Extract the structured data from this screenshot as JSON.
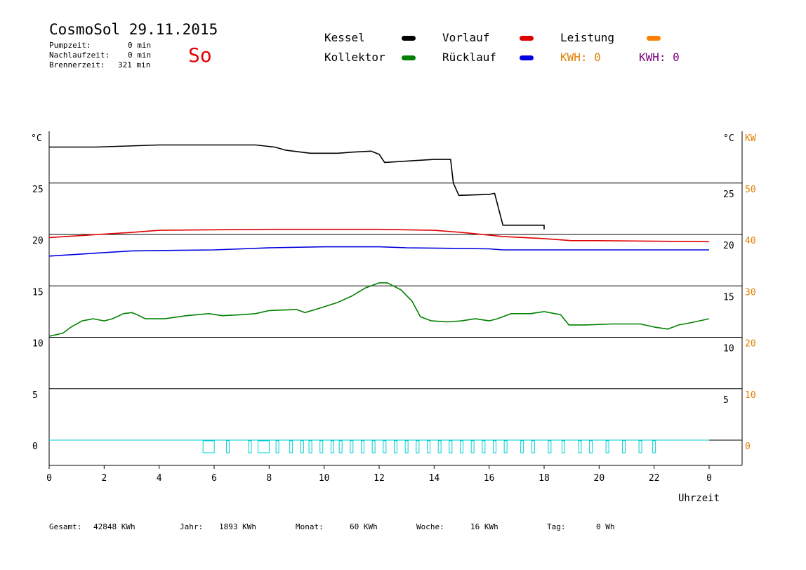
{
  "header": {
    "title": "CosmoSol 29.11.2015",
    "day": "So",
    "stats": [
      {
        "label": "Pumpzeit:",
        "value": "0 min"
      },
      {
        "label": "Nachlaufzeit:",
        "value": "0 min"
      },
      {
        "label": "Brennerzeit:",
        "value": "321 min"
      }
    ]
  },
  "legend": {
    "kessel": {
      "label": "Kessel",
      "color": "#000000"
    },
    "vorlauf": {
      "label": "Vorlauf",
      "color": "#e00000"
    },
    "leistung": {
      "label": "Leistung",
      "color": "#ff8000"
    },
    "kollektor": {
      "label": "Kollektor",
      "color": "#008000"
    },
    "ruecklauf": {
      "label": "Rücklauf",
      "color": "#0000e0"
    },
    "kwh1": "KWH: 0",
    "kwh2": "KWH: 0",
    "kwh1_color": "#e08000",
    "kwh2_color": "#800080"
  },
  "footer": {
    "gesamt_label": "Gesamt:",
    "gesamt_value": "42848 KWh",
    "jahr_label": "Jahr:",
    "jahr_value": "1893 KWh",
    "monat_label": "Monat:",
    "monat_value": "60 KWh",
    "woche_label": "Woche:",
    "woche_value": "16 KWh",
    "tag_label": "Tag:",
    "tag_value": "0 Wh"
  },
  "chart_data": {
    "type": "line",
    "xlabel": "Uhrzeit",
    "x_ticks": [
      "0",
      "2",
      "4",
      "6",
      "8",
      "10",
      "12",
      "14",
      "16",
      "18",
      "20",
      "22",
      "0"
    ],
    "xlim": [
      0,
      24
    ],
    "y_left": {
      "unit": "°C",
      "ticks": [
        0,
        5,
        10,
        15,
        20,
        25
      ],
      "ylim": [
        0,
        30
      ]
    },
    "y_right": {
      "unit": "°C",
      "ticks": [
        5,
        10,
        15,
        20,
        25
      ]
    },
    "y_right_kw": {
      "unit": "KW",
      "ticks": [
        0,
        10,
        20,
        30,
        40,
        50
      ],
      "ylim": [
        0,
        60
      ]
    },
    "grid": true,
    "series": [
      {
        "name": "Kessel",
        "color": "#000000",
        "points": [
          [
            0,
            28.5
          ],
          [
            1.7,
            28.5
          ],
          [
            4,
            28.7
          ],
          [
            7.5,
            28.7
          ],
          [
            8.2,
            28.5
          ],
          [
            8.6,
            28.2
          ],
          [
            9.5,
            27.9
          ],
          [
            10.5,
            27.9
          ],
          [
            11,
            28.0
          ],
          [
            11.7,
            28.1
          ],
          [
            12,
            27.8
          ],
          [
            12.2,
            27.0
          ],
          [
            14,
            27.3
          ],
          [
            14.6,
            27.3
          ],
          [
            14.7,
            25.0
          ],
          [
            14.9,
            23.8
          ],
          [
            16,
            23.9
          ],
          [
            16.2,
            24.0
          ],
          [
            16.5,
            20.9
          ],
          [
            18,
            20.9
          ],
          [
            18,
            20.5
          ]
        ]
      },
      {
        "name": "Vorlauf",
        "color": "#e00000",
        "points": [
          [
            0,
            19.7
          ],
          [
            3,
            20.2
          ],
          [
            4,
            20.4
          ],
          [
            8,
            20.5
          ],
          [
            12,
            20.5
          ],
          [
            14,
            20.4
          ],
          [
            15,
            20.2
          ],
          [
            16.5,
            19.8
          ],
          [
            18,
            19.6
          ],
          [
            19,
            19.4
          ],
          [
            20,
            19.4
          ],
          [
            24,
            19.3
          ]
        ]
      },
      {
        "name": "Rücklauf",
        "color": "#0000e0",
        "points": [
          [
            0,
            17.9
          ],
          [
            3,
            18.4
          ],
          [
            6,
            18.5
          ],
          [
            8,
            18.7
          ],
          [
            10,
            18.8
          ],
          [
            12,
            18.8
          ],
          [
            13,
            18.7
          ],
          [
            16,
            18.6
          ],
          [
            16.5,
            18.5
          ],
          [
            20,
            18.5
          ],
          [
            24,
            18.5
          ]
        ]
      },
      {
        "name": "Kollektor",
        "color": "#008000",
        "points": [
          [
            0,
            10.1
          ],
          [
            0.5,
            10.4
          ],
          [
            0.8,
            11.0
          ],
          [
            1.2,
            11.6
          ],
          [
            1.6,
            11.8
          ],
          [
            2.0,
            11.6
          ],
          [
            2.3,
            11.8
          ],
          [
            2.7,
            12.3
          ],
          [
            3.0,
            12.4
          ],
          [
            3.2,
            12.2
          ],
          [
            3.5,
            11.8
          ],
          [
            4.2,
            11.8
          ],
          [
            5.0,
            12.1
          ],
          [
            5.8,
            12.3
          ],
          [
            6.3,
            12.1
          ],
          [
            7.0,
            12.2
          ],
          [
            7.5,
            12.3
          ],
          [
            8.0,
            12.6
          ],
          [
            9.0,
            12.7
          ],
          [
            9.3,
            12.4
          ],
          [
            9.8,
            12.8
          ],
          [
            10.5,
            13.4
          ],
          [
            11.0,
            14.0
          ],
          [
            11.5,
            14.8
          ],
          [
            12.0,
            15.3
          ],
          [
            12.3,
            15.3
          ],
          [
            12.8,
            14.6
          ],
          [
            13.2,
            13.5
          ],
          [
            13.5,
            12.0
          ],
          [
            13.9,
            11.6
          ],
          [
            14.5,
            11.5
          ],
          [
            15.0,
            11.6
          ],
          [
            15.5,
            11.8
          ],
          [
            16.0,
            11.6
          ],
          [
            16.3,
            11.8
          ],
          [
            16.8,
            12.3
          ],
          [
            17.5,
            12.3
          ],
          [
            18.0,
            12.5
          ],
          [
            18.6,
            12.2
          ],
          [
            18.9,
            11.2
          ],
          [
            19.5,
            11.2
          ],
          [
            20.5,
            11.3
          ],
          [
            21.5,
            11.3
          ],
          [
            22.0,
            11.0
          ],
          [
            22.5,
            10.8
          ],
          [
            22.9,
            11.2
          ],
          [
            23.3,
            11.4
          ],
          [
            24.0,
            11.8
          ]
        ]
      }
    ],
    "leistung_marks": [
      5.8,
      6.5,
      7.3,
      7.8,
      8.3,
      8.8,
      9.2,
      9.5,
      9.9,
      10.3,
      10.6,
      11.0,
      11.4,
      11.8,
      12.2,
      12.6,
      13.0,
      13.4,
      13.8,
      14.2,
      14.6,
      15.0,
      15.4,
      15.8,
      16.2,
      16.6,
      17.2,
      17.6,
      18.2,
      18.7,
      19.3,
      19.7,
      20.3,
      20.9,
      21.5,
      22.0
    ]
  }
}
